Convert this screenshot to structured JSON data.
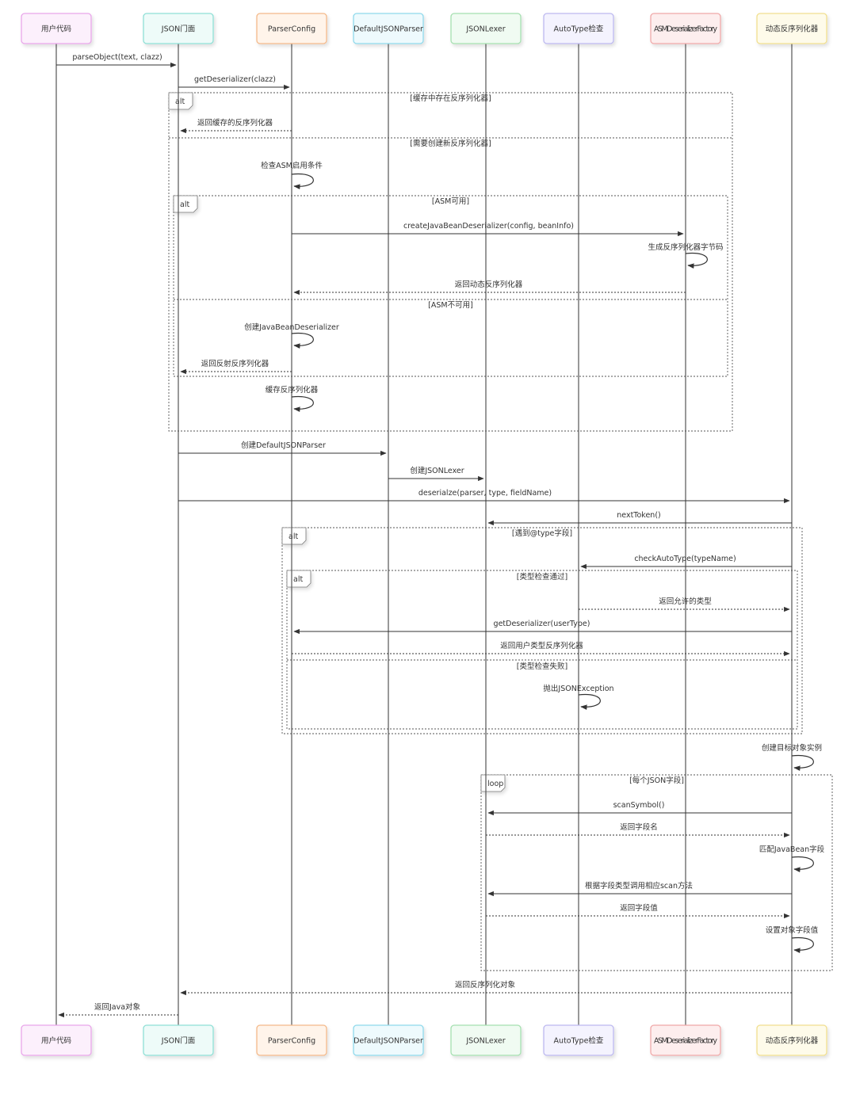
{
  "participants": [
    {
      "name": "用户代码",
      "border": "#e9a6ea",
      "fill": "#fcf0fc"
    },
    {
      "name": "JSON门面",
      "border": "#8fe0d6",
      "fill": "#eefbf9"
    },
    {
      "name": "ParserConfig",
      "border": "#f4b98a",
      "fill": "#fff4ea"
    },
    {
      "name": "DefaultJSONParser",
      "border": "#8fd9ec",
      "fill": "#eefafd"
    },
    {
      "name": "JSONLexer",
      "border": "#a5e0b0",
      "fill": "#f0fbf2"
    },
    {
      "name": "AutoType检查",
      "border": "#bdb9f0",
      "fill": "#f4f3fe"
    },
    {
      "name": "ASMDeserializerFactory",
      "border": "#f0a9a9",
      "fill": "#fdeeee"
    },
    {
      "name": "动态反序列化器",
      "border": "#f1df8f",
      "fill": "#fefbea"
    }
  ],
  "messages": [
    {
      "from": 0,
      "to": 1,
      "label": "parseObject(text, clazz)",
      "style": "solid"
    },
    {
      "from": 1,
      "to": 2,
      "label": "getDeserializer(clazz)",
      "style": "solid"
    },
    {
      "from": 2,
      "to": 1,
      "label": "返回缓存的反序列化器",
      "style": "dashed"
    },
    {
      "from": 2,
      "to": 2,
      "label": "检查ASM启用条件",
      "style": "solid"
    },
    {
      "from": 2,
      "to": 6,
      "label": "createJavaBeanDeserializer(config, beanInfo)",
      "style": "solid"
    },
    {
      "from": 6,
      "to": 6,
      "label": "生成反序列化器字节码",
      "style": "solid"
    },
    {
      "from": 6,
      "to": 2,
      "label": "返回动态反序列化器",
      "style": "dashed"
    },
    {
      "from": 2,
      "to": 2,
      "label": "创建JavaBeanDeserializer",
      "style": "solid"
    },
    {
      "from": 2,
      "to": 1,
      "label": "返回反射反序列化器",
      "style": "dashed"
    },
    {
      "from": 2,
      "to": 2,
      "label": "缓存反序列化器",
      "style": "solid"
    },
    {
      "from": 1,
      "to": 3,
      "label": "创建DefaultJSONParser",
      "style": "solid"
    },
    {
      "from": 3,
      "to": 4,
      "label": "创建JSONLexer",
      "style": "solid"
    },
    {
      "from": 1,
      "to": 7,
      "label": "deserialze(parser, type, fieldName)",
      "style": "solid"
    },
    {
      "from": 7,
      "to": 4,
      "label": "nextToken()",
      "style": "solid"
    },
    {
      "from": 7,
      "to": 5,
      "label": "checkAutoType(typeName)",
      "style": "solid"
    },
    {
      "from": 5,
      "to": 7,
      "label": "返回允许的类型",
      "style": "dashed"
    },
    {
      "from": 7,
      "to": 2,
      "label": "getDeserializer(userType)",
      "style": "solid"
    },
    {
      "from": 2,
      "to": 7,
      "label": "返回用户类型反序列化器",
      "style": "dashed"
    },
    {
      "from": 5,
      "to": 5,
      "label": "抛出JSONException",
      "style": "solid"
    },
    {
      "from": 7,
      "to": 7,
      "label": "创建目标对象实例",
      "style": "solid"
    },
    {
      "from": 7,
      "to": 4,
      "label": "scanSymbol()",
      "style": "solid"
    },
    {
      "from": 4,
      "to": 7,
      "label": "返回字段名",
      "style": "dashed"
    },
    {
      "from": 7,
      "to": 7,
      "label": "匹配JavaBean字段",
      "style": "solid"
    },
    {
      "from": 7,
      "to": 4,
      "label": "根据字段类型调用相应scan方法",
      "style": "solid"
    },
    {
      "from": 4,
      "to": 7,
      "label": "返回字段值",
      "style": "dashed"
    },
    {
      "from": 7,
      "to": 7,
      "label": "设置对象字段值",
      "style": "solid"
    },
    {
      "from": 7,
      "to": 1,
      "label": "返回反序列化对象",
      "style": "dashed"
    },
    {
      "from": 1,
      "to": 0,
      "label": "返回Java对象",
      "style": "dashed"
    }
  ],
  "frames": [
    {
      "kind": "alt",
      "sections": [
        "[缓存中存在反序列化器]",
        "[需要创建新反序列化器]"
      ]
    },
    {
      "kind": "alt",
      "sections": [
        "[ASM可用]",
        "[ASM不可用]"
      ]
    },
    {
      "kind": "alt",
      "sections": [
        "[遇到@type字段]"
      ]
    },
    {
      "kind": "alt",
      "sections": [
        "[类型检查通过]",
        "[类型检查失败]"
      ]
    },
    {
      "kind": "loop",
      "sections": [
        "[每个JSON字段]"
      ]
    }
  ]
}
